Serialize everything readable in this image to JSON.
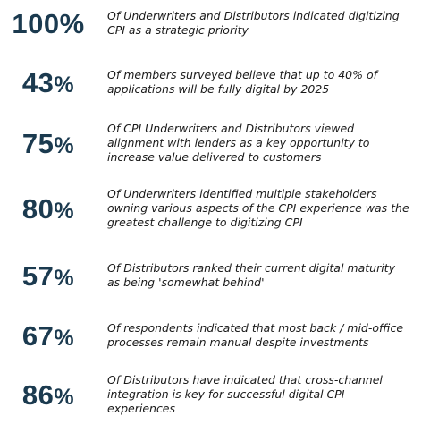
{
  "stats": [
    {
      "value": "100",
      "unit": "%",
      "text": "Of Underwriters and Distributors indicated digitizing CPI as a strategic priority"
    },
    {
      "value": "43",
      "unit": "%",
      "text": "Of members surveyed believe that up to 40% of applications will be fully digital by 2025"
    },
    {
      "value": "75",
      "unit": "%",
      "text": "Of CPI Underwriters and Distributors viewed alignment with lenders as a key opportunity to increase value delivered to customers"
    },
    {
      "value": "80",
      "unit": "%",
      "text": "Of Underwriters identified multiple stakeholders owning various aspects of the CPI experience was the greatest challenge to digitizing CPI"
    },
    {
      "value": "57",
      "unit": "%",
      "text": "Of Distributors ranked their current digital maturity as being 'somewhat behind'"
    },
    {
      "value": "67",
      "unit": "%",
      "text": "Of respondents indicated that most back / mid-office processes remain manual despite investments"
    },
    {
      "value": "86",
      "unit": "%",
      "text": "Of Distributors have indicated that cross-channel integration is key for successful digital CPI experiences"
    }
  ]
}
